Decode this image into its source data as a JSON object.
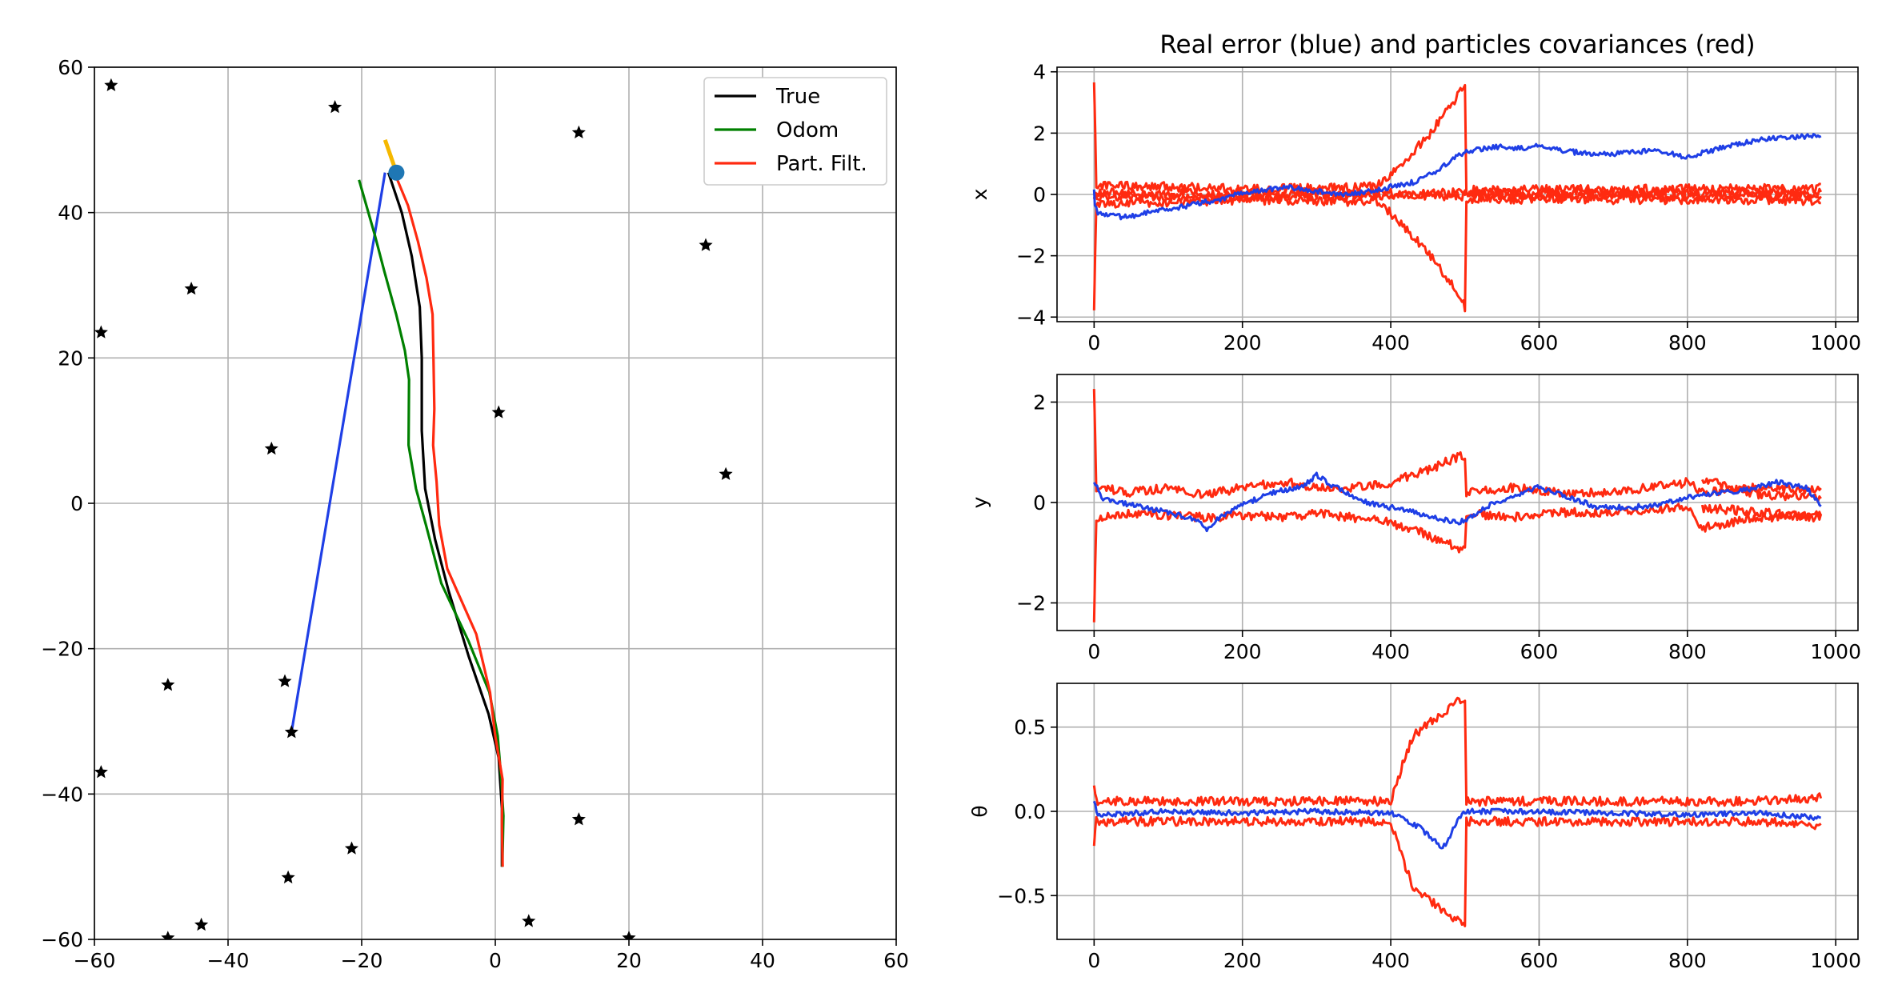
{
  "chart_data": [
    {
      "id": "trajectory",
      "type": "line",
      "title": "",
      "xlim": [
        -60,
        60
      ],
      "ylim": [
        -60,
        60
      ],
      "xticks": [
        -60,
        -40,
        -20,
        0,
        20,
        40,
        60
      ],
      "yticks": [
        -60,
        -40,
        -20,
        0,
        20,
        40,
        60
      ],
      "xtick_labels": [
        "−60",
        "−40",
        "−20",
        "0",
        "20",
        "40",
        "60"
      ],
      "ytick_labels": [
        "−60",
        "−40",
        "−20",
        "0",
        "20",
        "40",
        "60"
      ],
      "grid": true,
      "legend": {
        "placement": "top-right",
        "entries": [
          "True",
          "Odom",
          "Part. Filt."
        ]
      },
      "colors": {
        "True": "#000000",
        "Odom": "#008000",
        "Part. Filt.": "#ff2a10",
        "measurement": "#1f3fe6",
        "heading": "#f5b800",
        "robot": "#1f77b4"
      },
      "series": [
        {
          "name": "True",
          "points": [
            [
              1,
              -50
            ],
            [
              1,
              -42
            ],
            [
              0.5,
              -35
            ],
            [
              -1,
              -29
            ],
            [
              -4,
              -21
            ],
            [
              -7,
              -12
            ],
            [
              -9,
              -5
            ],
            [
              -10.5,
              2
            ],
            [
              -11,
              10
            ],
            [
              -11,
              20
            ],
            [
              -11.3,
              27
            ],
            [
              -12.5,
              34
            ],
            [
              -14,
              40
            ],
            [
              -16,
              45.5
            ]
          ]
        },
        {
          "name": "Odom",
          "points": [
            [
              1.3,
              -50
            ],
            [
              1,
              -43
            ],
            [
              1,
              -38
            ],
            [
              0.5,
              -32
            ],
            [
              -1,
              -26
            ],
            [
              -4,
              -19
            ],
            [
              -8,
              -11
            ],
            [
              -10.5,
              -3
            ],
            [
              -12,
              2
            ],
            [
              -13,
              8
            ],
            [
              -13,
              17
            ],
            [
              -13.6,
              21
            ],
            [
              -15,
              26
            ],
            [
              -16.5,
              32
            ],
            [
              -18,
              37
            ],
            [
              -20.5,
              44.5
            ]
          ]
        },
        {
          "name": "Part. Filt.",
          "points": [
            [
              1,
              -50
            ],
            [
              1.2,
              -44
            ],
            [
              1,
              -38
            ],
            [
              0,
              -32
            ],
            [
              -1,
              -26
            ],
            [
              -3,
              -18
            ],
            [
              -7,
              -9
            ],
            [
              -8.4,
              -3
            ],
            [
              -9,
              3
            ],
            [
              -9.4,
              8
            ],
            [
              -9.2,
              13
            ],
            [
              -9.3,
              20
            ],
            [
              -9.6,
              26
            ],
            [
              -10.5,
              31
            ],
            [
              -11.5,
              36
            ],
            [
              -13,
              41
            ],
            [
              -15.5,
              46
            ]
          ]
        }
      ],
      "measurement_line": [
        [
          -30.5,
          -31.5
        ],
        [
          -16.5,
          45.5
        ]
      ],
      "robot": {
        "position": [
          -14.8,
          45.5
        ],
        "heading_end": [
          -16.5,
          50
        ]
      },
      "landmarks": [
        [
          -57.5,
          57.5
        ],
        [
          -24,
          54.5
        ],
        [
          12.5,
          51
        ],
        [
          31.5,
          35.5
        ],
        [
          -45.5,
          29.5
        ],
        [
          -59,
          23.5
        ],
        [
          0.5,
          12.5
        ],
        [
          -33.5,
          7.5
        ],
        [
          34.5,
          4
        ],
        [
          -49,
          -25
        ],
        [
          -31.5,
          -24.5
        ],
        [
          -30.5,
          -31.5
        ],
        [
          -59,
          -37
        ],
        [
          12.5,
          -43.5
        ],
        [
          -21.5,
          -47.5
        ],
        [
          -31,
          -51.5
        ],
        [
          -49,
          -59.8
        ],
        [
          -44,
          -58
        ],
        [
          5,
          -57.5
        ],
        [
          20,
          -59.8
        ]
      ]
    },
    {
      "id": "err_x",
      "type": "line",
      "title": "Real error (blue) and particles covariances (red)",
      "ylabel": "x",
      "xlim": [
        -50,
        1030
      ],
      "ylim": [
        -4.15,
        4.15
      ],
      "xticks": [
        0,
        200,
        400,
        600,
        800,
        1000
      ],
      "yticks": [
        -4,
        -2,
        0,
        2,
        4
      ],
      "xtick_labels": [
        "0",
        "200",
        "400",
        "600",
        "800",
        "1000"
      ],
      "ytick_labels": [
        "−4",
        "−2",
        "0",
        "2",
        "4"
      ],
      "grid": true,
      "error": [
        [
          0,
          0.2
        ],
        [
          1,
          -0.3
        ],
        [
          5,
          -0.6
        ],
        [
          20,
          -0.65
        ],
        [
          40,
          -0.75
        ],
        [
          80,
          -0.55
        ],
        [
          120,
          -0.4
        ],
        [
          150,
          -0.25
        ],
        [
          180,
          -0.1
        ],
        [
          200,
          0.05
        ],
        [
          260,
          0.25
        ],
        [
          300,
          0.1
        ],
        [
          340,
          0.0
        ],
        [
          370,
          0.1
        ],
        [
          400,
          0.25
        ],
        [
          430,
          0.4
        ],
        [
          450,
          0.6
        ],
        [
          470,
          0.9
        ],
        [
          500,
          1.4
        ],
        [
          540,
          1.55
        ],
        [
          580,
          1.5
        ],
        [
          600,
          1.6
        ],
        [
          640,
          1.4
        ],
        [
          680,
          1.3
        ],
        [
          720,
          1.35
        ],
        [
          760,
          1.45
        ],
        [
          800,
          1.2
        ],
        [
          820,
          1.35
        ],
        [
          860,
          1.6
        ],
        [
          900,
          1.8
        ],
        [
          930,
          1.85
        ],
        [
          960,
          1.9
        ],
        [
          980,
          1.95
        ]
      ],
      "cov_upper": [
        [
          0,
          3.8
        ],
        [
          3,
          0.3
        ],
        [
          100,
          0.25
        ],
        [
          200,
          0.18
        ],
        [
          300,
          0.2
        ],
        [
          380,
          0.25
        ],
        [
          400,
          0.6
        ],
        [
          450,
          1.9
        ],
        [
          490,
          3.2
        ],
        [
          500,
          3.7
        ],
        [
          502,
          0.15
        ],
        [
          980,
          0.2
        ]
      ],
      "cov_upper_b": [
        [
          0,
          0.05
        ],
        [
          200,
          0.02
        ],
        [
          300,
          0.0
        ],
        [
          400,
          0.05
        ],
        [
          502,
          0.05
        ],
        [
          980,
          0.05
        ]
      ],
      "cov_lower": [
        [
          0,
          -3.8
        ],
        [
          3,
          -0.3
        ],
        [
          100,
          -0.25
        ],
        [
          200,
          -0.18
        ],
        [
          300,
          -0.2
        ],
        [
          380,
          -0.25
        ],
        [
          400,
          -0.6
        ],
        [
          450,
          -1.9
        ],
        [
          490,
          -3.2
        ],
        [
          500,
          -3.7
        ],
        [
          502,
          -0.15
        ],
        [
          980,
          -0.2
        ]
      ],
      "cov_lower_b": [
        [
          0,
          -0.05
        ],
        [
          200,
          -0.12
        ],
        [
          300,
          -0.05
        ],
        [
          400,
          -0.05
        ],
        [
          502,
          -0.05
        ],
        [
          980,
          -0.05
        ]
      ]
    },
    {
      "id": "err_y",
      "type": "line",
      "title": "",
      "ylabel": "y",
      "xlim": [
        -50,
        1030
      ],
      "ylim": [
        -2.55,
        2.55
      ],
      "xticks": [
        0,
        200,
        400,
        600,
        800,
        1000
      ],
      "yticks": [
        -2,
        0,
        2
      ],
      "xtick_labels": [
        "0",
        "200",
        "400",
        "600",
        "800",
        "1000"
      ],
      "ytick_labels": [
        "−2",
        "0",
        "2"
      ],
      "grid": true,
      "error": [
        [
          0,
          0.45
        ],
        [
          10,
          0.1
        ],
        [
          50,
          -0.05
        ],
        [
          100,
          -0.2
        ],
        [
          140,
          -0.35
        ],
        [
          150,
          -0.55
        ],
        [
          170,
          -0.3
        ],
        [
          200,
          -0.05
        ],
        [
          240,
          0.2
        ],
        [
          280,
          0.3
        ],
        [
          300,
          0.55
        ],
        [
          320,
          0.35
        ],
        [
          350,
          0.1
        ],
        [
          380,
          -0.05
        ],
        [
          420,
          -0.15
        ],
        [
          460,
          -0.3
        ],
        [
          490,
          -0.4
        ],
        [
          500,
          -0.35
        ],
        [
          540,
          0.0
        ],
        [
          600,
          0.3
        ],
        [
          640,
          0.1
        ],
        [
          680,
          -0.1
        ],
        [
          720,
          -0.1
        ],
        [
          760,
          -0.05
        ],
        [
          800,
          0.1
        ],
        [
          840,
          0.2
        ],
        [
          880,
          0.25
        ],
        [
          920,
          0.4
        ],
        [
          960,
          0.3
        ],
        [
          980,
          -0.05
        ]
      ],
      "cov_upper": [
        [
          0,
          2.35
        ],
        [
          3,
          0.3
        ],
        [
          50,
          0.2
        ],
        [
          100,
          0.3
        ],
        [
          150,
          0.15
        ],
        [
          200,
          0.3
        ],
        [
          260,
          0.4
        ],
        [
          300,
          0.3
        ],
        [
          350,
          0.3
        ],
        [
          400,
          0.4
        ],
        [
          450,
          0.65
        ],
        [
          490,
          0.9
        ],
        [
          500,
          0.95
        ],
        [
          502,
          0.2
        ],
        [
          560,
          0.3
        ],
        [
          620,
          0.2
        ],
        [
          700,
          0.2
        ],
        [
          800,
          0.4
        ],
        [
          820,
          0.2
        ],
        [
          900,
          0.3
        ],
        [
          980,
          0.25
        ]
      ],
      "cov_lower": [
        [
          0,
          -2.35
        ],
        [
          3,
          -0.3
        ],
        [
          50,
          -0.2
        ],
        [
          100,
          -0.25
        ],
        [
          150,
          -0.3
        ],
        [
          200,
          -0.25
        ],
        [
          260,
          -0.3
        ],
        [
          300,
          -0.2
        ],
        [
          350,
          -0.3
        ],
        [
          400,
          -0.4
        ],
        [
          450,
          -0.65
        ],
        [
          490,
          -0.9
        ],
        [
          500,
          -0.95
        ],
        [
          502,
          -0.2
        ],
        [
          560,
          -0.3
        ],
        [
          620,
          -0.2
        ],
        [
          700,
          -0.2
        ],
        [
          800,
          -0.1
        ],
        [
          820,
          -0.5
        ],
        [
          900,
          -0.3
        ],
        [
          980,
          -0.25
        ]
      ],
      "cov_upper_b": [
        [
          820,
          0.45
        ],
        [
          900,
          0.15
        ],
        [
          980,
          0.1
        ]
      ],
      "cov_lower_b": [
        [
          820,
          -0.1
        ],
        [
          900,
          -0.2
        ],
        [
          980,
          -0.3
        ]
      ]
    },
    {
      "id": "err_theta",
      "type": "line",
      "title": "",
      "ylabel": "θ",
      "xlim": [
        -50,
        1030
      ],
      "ylim": [
        -0.76,
        0.76
      ],
      "xticks": [
        0,
        200,
        400,
        600,
        800,
        1000
      ],
      "yticks": [
        -0.5,
        0.0,
        0.5
      ],
      "xtick_labels": [
        "0",
        "200",
        "400",
        "600",
        "800",
        "1000"
      ],
      "ytick_labels": [
        "−0.5",
        "0.0",
        "0.5"
      ],
      "grid": true,
      "error": [
        [
          0,
          0.05
        ],
        [
          5,
          -0.02
        ],
        [
          100,
          0.0
        ],
        [
          200,
          -0.01
        ],
        [
          300,
          0.0
        ],
        [
          400,
          -0.01
        ],
        [
          420,
          -0.05
        ],
        [
          440,
          -0.1
        ],
        [
          460,
          -0.18
        ],
        [
          470,
          -0.22
        ],
        [
          480,
          -0.15
        ],
        [
          490,
          -0.05
        ],
        [
          500,
          0.0
        ],
        [
          560,
          0.0
        ],
        [
          700,
          -0.01
        ],
        [
          800,
          -0.02
        ],
        [
          900,
          -0.01
        ],
        [
          980,
          -0.04
        ]
      ],
      "cov_upper": [
        [
          0,
          0.18
        ],
        [
          3,
          0.06
        ],
        [
          200,
          0.06
        ],
        [
          400,
          0.06
        ],
        [
          410,
          0.2
        ],
        [
          430,
          0.45
        ],
        [
          460,
          0.55
        ],
        [
          480,
          0.62
        ],
        [
          500,
          0.68
        ],
        [
          502,
          0.06
        ],
        [
          700,
          0.06
        ],
        [
          900,
          0.06
        ],
        [
          980,
          0.08
        ]
      ],
      "cov_lower": [
        [
          0,
          -0.18
        ],
        [
          3,
          -0.06
        ],
        [
          200,
          -0.06
        ],
        [
          400,
          -0.06
        ],
        [
          410,
          -0.2
        ],
        [
          430,
          -0.45
        ],
        [
          460,
          -0.55
        ],
        [
          480,
          -0.62
        ],
        [
          500,
          -0.68
        ],
        [
          502,
          -0.06
        ],
        [
          700,
          -0.06
        ],
        [
          900,
          -0.06
        ],
        [
          980,
          -0.08
        ]
      ]
    }
  ]
}
